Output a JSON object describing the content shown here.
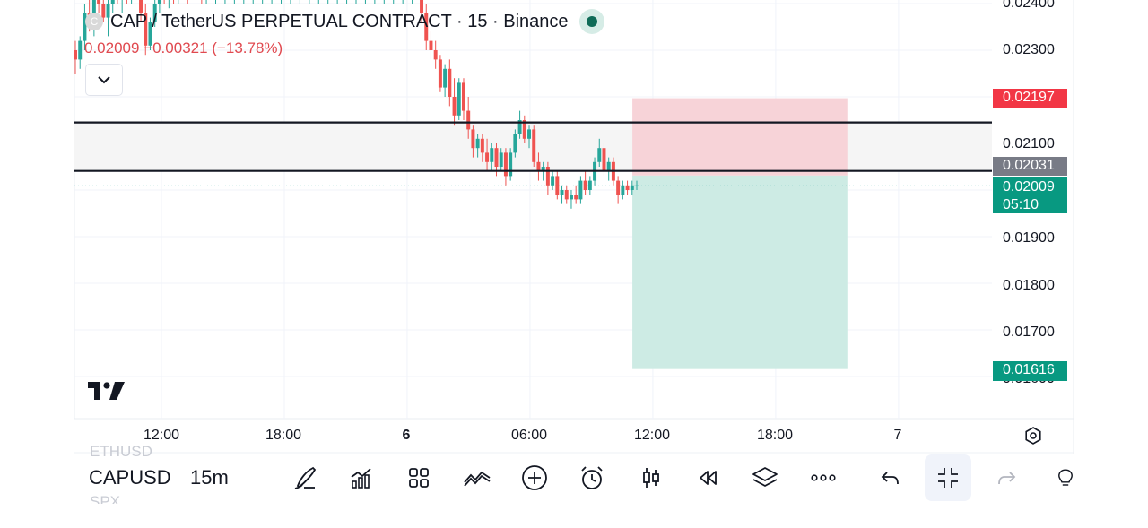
{
  "header": {
    "coin_letter": "C",
    "title": "CAP / TetherUS PERPETUAL CONTRACT · 15 · Binance",
    "change": "0.02009 −0.00321 (−13.78%)"
  },
  "colors": {
    "up": "#26a69a",
    "down": "#ef5350",
    "stop_zone": "#f7d3d8",
    "target_zone": "#cdebe4",
    "zone_band": "#f5f5f5",
    "last_price_tag": "#089981",
    "stop_tag": "#f23645",
    "line_tag": "#787b86",
    "status": "#0f6b57"
  },
  "price_axis": {
    "ticks": [
      "0.02400",
      "0.02300",
      "0.02100",
      "0.01900",
      "0.01800",
      "0.01700",
      "0.01600"
    ],
    "tags": {
      "stop": "0.02197",
      "line": "0.02031",
      "last": "0.02009",
      "countdown": "05:10",
      "target": "0.01616"
    }
  },
  "time_axis": {
    "labels": [
      "12:00",
      "18:00",
      "6",
      "06:00",
      "12:00",
      "18:00",
      "7"
    ]
  },
  "toolbar": {
    "symbol": "CAPUSD",
    "timeframe": "15m",
    "ghost_above": "ETHUSD",
    "ghost_below": "SPX",
    "icons": [
      "brush-icon",
      "indicators-icon",
      "layout-grid-icon",
      "compare-icon",
      "add-icon",
      "alert-clock-icon",
      "candles-icon",
      "replay-icon",
      "layers-icon",
      "more-icon",
      "undo-icon",
      "collapse-fullscreen-icon",
      "redo-icon",
      "lightbulb-icon"
    ]
  },
  "chart_data": {
    "type": "candlestick",
    "symbol": "CAP / TetherUS PERPETUAL CONTRACT",
    "interval": "15",
    "exchange": "Binance",
    "last_price": 0.02009,
    "horizontal_lines": [
      0.02145,
      0.02041
    ],
    "position": {
      "entry": 0.02031,
      "stop": 0.02197,
      "target": 0.01616,
      "start_time": "11:00",
      "end_time": "21:30"
    },
    "y_range": [
      0.0155,
      0.0244
    ],
    "x_time_hours": [
      6,
      30
    ],
    "ohlc": [
      [
        0.023,
        0.0232,
        0.0225,
        0.0228
      ],
      [
        0.0228,
        0.0233,
        0.0226,
        0.0232
      ],
      [
        0.0232,
        0.024,
        0.023,
        0.0238
      ],
      [
        0.0238,
        0.0243,
        0.0234,
        0.0236
      ],
      [
        0.0236,
        0.0244,
        0.0233,
        0.0242
      ],
      [
        0.0242,
        0.0245,
        0.0238,
        0.024
      ],
      [
        0.024,
        0.0246,
        0.0236,
        0.0237
      ],
      [
        0.0237,
        0.0242,
        0.0233,
        0.024
      ],
      [
        0.024,
        0.0246,
        0.0238,
        0.0244
      ],
      [
        0.0244,
        0.0246,
        0.024,
        0.0241
      ],
      [
        0.0241,
        0.0245,
        0.0238,
        0.0243
      ],
      [
        0.0243,
        0.0246,
        0.024,
        0.0242
      ],
      [
        0.0242,
        0.0246,
        0.024,
        0.0245
      ],
      [
        0.0245,
        0.0246,
        0.0241,
        0.0243
      ],
      [
        0.0243,
        0.0245,
        0.0236,
        0.0238
      ],
      [
        0.0238,
        0.024,
        0.0229,
        0.0231
      ],
      [
        0.0231,
        0.0237,
        0.023,
        0.0236
      ],
      [
        0.0236,
        0.0242,
        0.0235,
        0.024
      ],
      [
        0.024,
        0.0246,
        0.0238,
        0.0244
      ],
      [
        0.0244,
        0.0246,
        0.024,
        0.0243
      ],
      [
        0.0243,
        0.0246,
        0.0239,
        0.0244
      ],
      [
        0.0244,
        0.0246,
        0.024,
        0.0242
      ],
      [
        0.0242,
        0.0246,
        0.024,
        0.0245
      ],
      [
        0.0245,
        0.0246,
        0.0242,
        0.0244
      ],
      [
        0.0244,
        0.0246,
        0.024,
        0.0243
      ],
      [
        0.0243,
        0.0246,
        0.0241,
        0.0245
      ],
      [
        0.0245,
        0.0246,
        0.0242,
        0.0244
      ],
      [
        0.0244,
        0.0246,
        0.024,
        0.0242
      ],
      [
        0.0242,
        0.0246,
        0.024,
        0.0245
      ],
      [
        0.0245,
        0.0246,
        0.0241,
        0.0243
      ],
      [
        0.0243,
        0.0246,
        0.024,
        0.0244
      ],
      [
        0.0244,
        0.0246,
        0.0241,
        0.0242
      ],
      [
        0.0242,
        0.0246,
        0.024,
        0.0245
      ],
      [
        0.0245,
        0.0246,
        0.0241,
        0.0243
      ],
      [
        0.0243,
        0.0246,
        0.024,
        0.0244
      ],
      [
        0.0244,
        0.0246,
        0.0241,
        0.0242
      ],
      [
        0.0242,
        0.0246,
        0.024,
        0.0245
      ],
      [
        0.0245,
        0.0246,
        0.0241,
        0.0243
      ],
      [
        0.0243,
        0.0246,
        0.024,
        0.0244
      ],
      [
        0.0244,
        0.0246,
        0.0241,
        0.0242
      ],
      [
        0.0242,
        0.0246,
        0.024,
        0.0245
      ],
      [
        0.0245,
        0.0246,
        0.0241,
        0.0243
      ],
      [
        0.0243,
        0.0246,
        0.024,
        0.0244
      ],
      [
        0.0244,
        0.0246,
        0.0241,
        0.0242
      ],
      [
        0.0242,
        0.0246,
        0.024,
        0.0245
      ],
      [
        0.0245,
        0.0246,
        0.0241,
        0.0243
      ],
      [
        0.0243,
        0.0246,
        0.024,
        0.0244
      ],
      [
        0.0244,
        0.0246,
        0.0241,
        0.0242
      ],
      [
        0.0242,
        0.0246,
        0.024,
        0.0245
      ],
      [
        0.0245,
        0.0246,
        0.0241,
        0.0243
      ],
      [
        0.0243,
        0.0246,
        0.024,
        0.0244
      ],
      [
        0.0244,
        0.0246,
        0.0241,
        0.0242
      ],
      [
        0.0242,
        0.0246,
        0.024,
        0.0245
      ],
      [
        0.0245,
        0.0246,
        0.0241,
        0.0243
      ],
      [
        0.0243,
        0.0246,
        0.024,
        0.0244
      ],
      [
        0.0244,
        0.0246,
        0.0241,
        0.0242
      ],
      [
        0.0242,
        0.0246,
        0.024,
        0.0245
      ],
      [
        0.0245,
        0.0246,
        0.0241,
        0.0243
      ],
      [
        0.0243,
        0.0246,
        0.024,
        0.0244
      ],
      [
        0.0244,
        0.0246,
        0.0241,
        0.0242
      ],
      [
        0.0242,
        0.0246,
        0.024,
        0.0245
      ],
      [
        0.0245,
        0.0246,
        0.0241,
        0.0243
      ],
      [
        0.0243,
        0.0246,
        0.024,
        0.0244
      ],
      [
        0.0244,
        0.0246,
        0.0241,
        0.0242
      ],
      [
        0.0242,
        0.0246,
        0.024,
        0.0245
      ],
      [
        0.0245,
        0.0246,
        0.0241,
        0.0243
      ],
      [
        0.0243,
        0.0246,
        0.024,
        0.0244
      ],
      [
        0.0244,
        0.0246,
        0.0241,
        0.0242
      ],
      [
        0.0242,
        0.0246,
        0.024,
        0.0245
      ],
      [
        0.0245,
        0.0246,
        0.0241,
        0.0243
      ],
      [
        0.0243,
        0.0246,
        0.024,
        0.0244
      ],
      [
        0.0244,
        0.0246,
        0.0241,
        0.0242
      ],
      [
        0.0242,
        0.0246,
        0.024,
        0.0245
      ],
      [
        0.0245,
        0.0246,
        0.0241,
        0.0243
      ],
      [
        0.0243,
        0.0246,
        0.0236,
        0.0238
      ],
      [
        0.0238,
        0.024,
        0.023,
        0.0232
      ],
      [
        0.0232,
        0.0234,
        0.0228,
        0.023
      ],
      [
        0.023,
        0.0232,
        0.0226,
        0.0228
      ],
      [
        0.0228,
        0.0229,
        0.0221,
        0.0222
      ],
      [
        0.0222,
        0.0227,
        0.022,
        0.0226
      ],
      [
        0.0226,
        0.0228,
        0.0218,
        0.022
      ],
      [
        0.022,
        0.0224,
        0.0214,
        0.0216
      ],
      [
        0.0216,
        0.0224,
        0.0215,
        0.0223
      ],
      [
        0.0223,
        0.0224,
        0.0215,
        0.0217
      ],
      [
        0.0217,
        0.022,
        0.0211,
        0.0213
      ],
      [
        0.0213,
        0.0214,
        0.0207,
        0.0209
      ],
      [
        0.0209,
        0.0212,
        0.0207,
        0.0211
      ],
      [
        0.0211,
        0.0212,
        0.0206,
        0.0208
      ],
      [
        0.0208,
        0.0211,
        0.0204,
        0.0206
      ],
      [
        0.0206,
        0.021,
        0.0204,
        0.0209
      ],
      [
        0.0209,
        0.021,
        0.0203,
        0.0205
      ],
      [
        0.0205,
        0.0209,
        0.0204,
        0.0208
      ],
      [
        0.0208,
        0.0209,
        0.0201,
        0.0203
      ],
      [
        0.0203,
        0.0209,
        0.0202,
        0.0208
      ],
      [
        0.0208,
        0.0213,
        0.0207,
        0.0212
      ],
      [
        0.0212,
        0.0217,
        0.0211,
        0.0215
      ],
      [
        0.0215,
        0.0216,
        0.021,
        0.0211
      ],
      [
        0.0211,
        0.0214,
        0.0209,
        0.0213
      ],
      [
        0.0213,
        0.0214,
        0.0205,
        0.0206
      ],
      [
        0.0206,
        0.0208,
        0.0202,
        0.0204
      ],
      [
        0.0204,
        0.0206,
        0.0202,
        0.0205
      ],
      [
        0.0205,
        0.0206,
        0.0199,
        0.0201
      ],
      [
        0.0201,
        0.0204,
        0.02,
        0.0203
      ],
      [
        0.0203,
        0.0204,
        0.0198,
        0.0199
      ],
      [
        0.0199,
        0.0201,
        0.0197,
        0.02
      ],
      [
        0.02,
        0.0201,
        0.0197,
        0.0198
      ],
      [
        0.0198,
        0.02,
        0.0196,
        0.0199
      ],
      [
        0.0199,
        0.0201,
        0.0197,
        0.0198
      ],
      [
        0.0198,
        0.0203,
        0.0197,
        0.0202
      ],
      [
        0.0202,
        0.0204,
        0.0199,
        0.02
      ],
      [
        0.02,
        0.0203,
        0.0199,
        0.0202
      ],
      [
        0.0202,
        0.0207,
        0.0201,
        0.0206
      ],
      [
        0.0206,
        0.0211,
        0.0205,
        0.0209
      ],
      [
        0.0209,
        0.021,
        0.0203,
        0.0204
      ],
      [
        0.0204,
        0.0207,
        0.0202,
        0.0206
      ],
      [
        0.0206,
        0.0207,
        0.0201,
        0.0202
      ],
      [
        0.0202,
        0.0203,
        0.0197,
        0.0199
      ],
      [
        0.0199,
        0.0202,
        0.0198,
        0.0201
      ],
      [
        0.0201,
        0.0202,
        0.0199,
        0.02
      ],
      [
        0.02,
        0.0202,
        0.0199,
        0.0201
      ],
      [
        0.0201,
        0.0202,
        0.02,
        0.0201
      ]
    ]
  }
}
